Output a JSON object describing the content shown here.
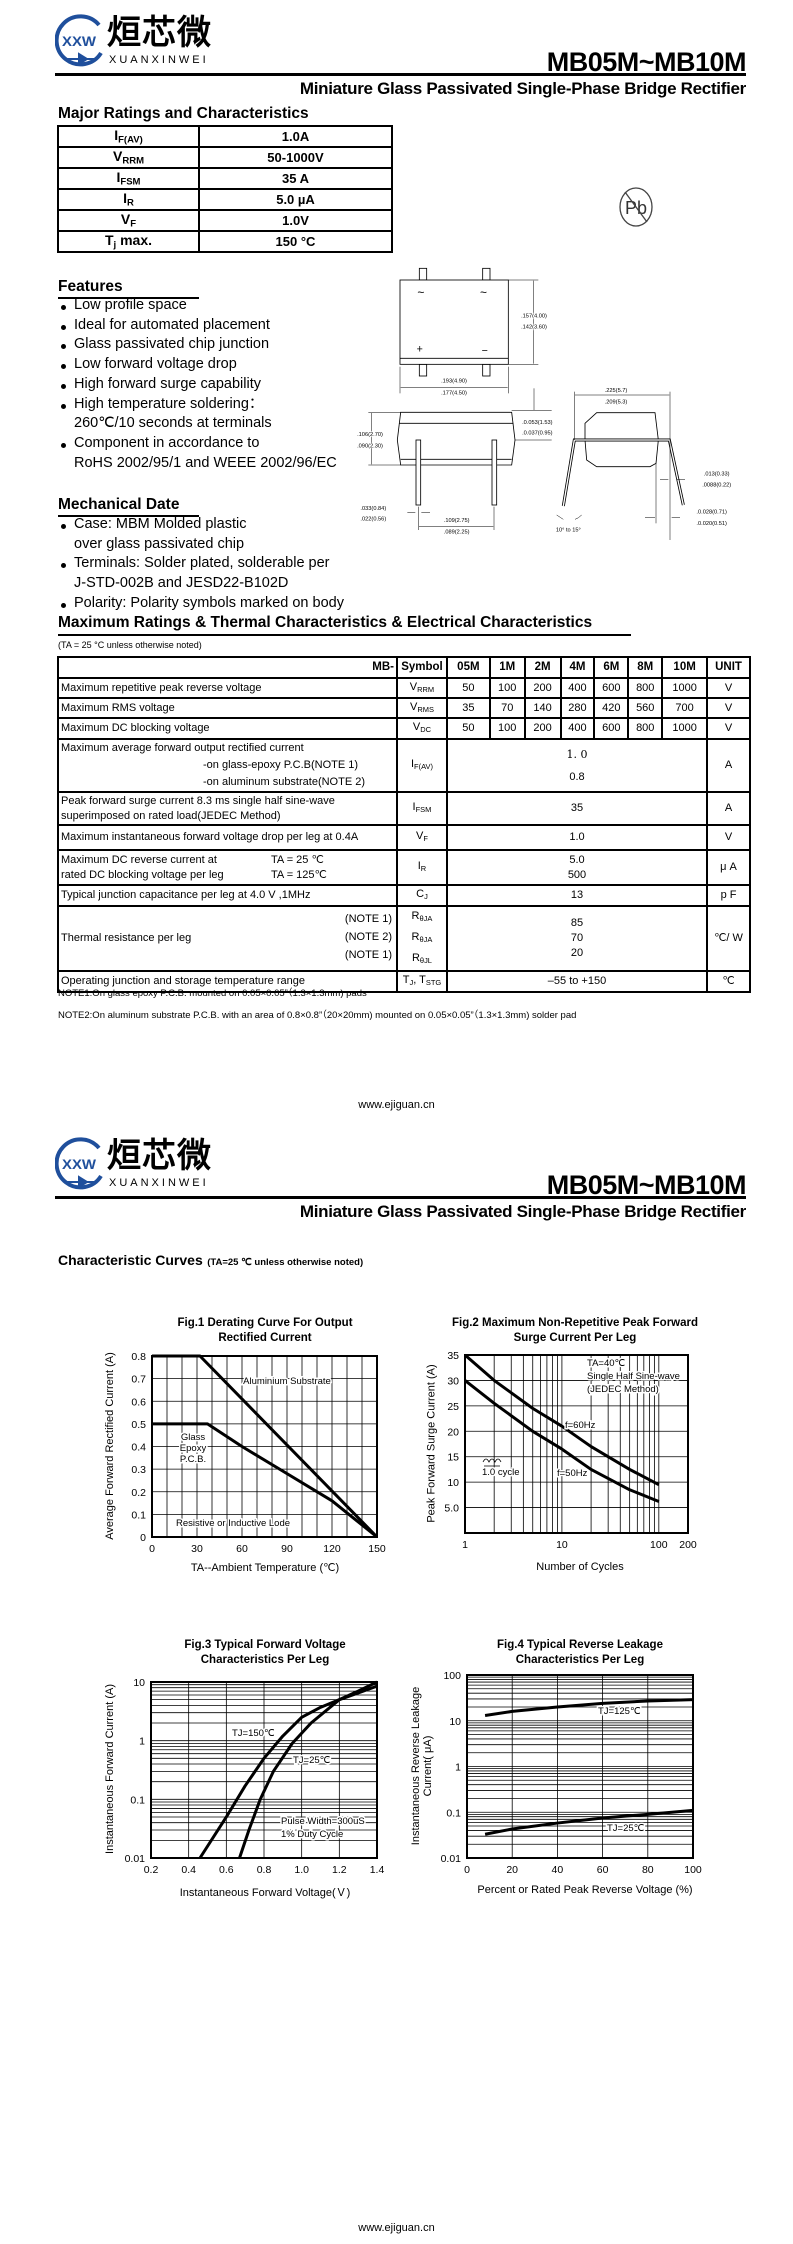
{
  "header": {
    "brand_cn": "烜芯微",
    "brand_latin": "XUANXINWEI",
    "brand_mark": "XXW",
    "part_number": "MB05M~MB10M",
    "subtitle": "Miniature Glass Passivated Single-Phase Bridge Rectifier",
    "brand_color": "#1f4f9c"
  },
  "major_ratings": {
    "heading": "Major Ratings and Characteristics",
    "rows": [
      {
        "symbol": "I",
        "sub": "F(AV)",
        "value": "1.0A"
      },
      {
        "symbol": "V",
        "sub": "RRM",
        "value": "50-1000V"
      },
      {
        "symbol": "I",
        "sub": "FSM",
        "value": "35 A"
      },
      {
        "symbol": "I",
        "sub": "R",
        "value": "5.0 µA"
      },
      {
        "symbol": "V",
        "sub": "F",
        "value": "1.0V"
      },
      {
        "symbol": "T",
        "sub": "j",
        "suffix": " max.",
        "value": "150 °C"
      }
    ]
  },
  "pb_free_icon": "pb-free-icon",
  "features": {
    "heading": "Features",
    "items": [
      "Low profile space",
      "Ideal for automated placement",
      "Glass passivated chip junction",
      "Low forward voltage drop",
      "High forward surge capability",
      "High temperature soldering：\n260℃/10 seconds at terminals",
      "Component in accordance to\nRoHS 2002/95/1 and WEEE 2002/96/EC"
    ]
  },
  "mechanical": {
    "heading": "Mechanical Date",
    "items": [
      "Case: MBM Molded plastic\n over glass passivated chip",
      "Terminals: Solder plated, solderable per\n J-STD-002B and JESD22-B102D",
      "Polarity: Polarity symbols marked on body"
    ]
  },
  "package_drawing": {
    "ac_symbol": "~",
    "plus_symbol": "+",
    "minus_symbol": "−",
    "dims": {
      "height_top": [
        ".157(4.00)",
        ".142(3.60)"
      ],
      "width_top": [
        ".193(4.90)",
        ".177(4.50)"
      ],
      "body_height": [
        ".106(2.70)",
        ".090(2.30)"
      ],
      "standoff": [
        ".0.053(1.53)",
        ".0.037(0.95)"
      ],
      "lead_width": [
        ".033(0.84)",
        ".022(0.56)"
      ],
      "lead_pitch": [
        ".109(2.75)",
        ".089(2.25)"
      ],
      "overall_width": [
        ".225(5.7)",
        ".209(5.3)"
      ],
      "lead_thickness": [
        ".013(0.33)",
        ".0088(0.22)"
      ],
      "lead_tip": [
        ".0.028(0.71)",
        ".0.020(0.51)"
      ],
      "angle": "10° to 15°"
    }
  },
  "ratings": {
    "heading": "Maximum Ratings & Thermal Characteristics & Electrical Characteristics",
    "condition": "(TA = 25 °C unless otherwise noted)",
    "columns": [
      "MB-",
      "Symbol",
      "05M",
      "1M",
      "2M",
      "4M",
      "6M",
      "8M",
      "10M",
      "UNIT"
    ],
    "rows": {
      "vrrm": {
        "desc": "Maximum repetitive peak reverse voltage",
        "sym": "V",
        "sub": "RRM",
        "values": [
          "50",
          "100",
          "200",
          "400",
          "600",
          "800",
          "1000"
        ],
        "unit": "V"
      },
      "vrms": {
        "desc": "Maximum RMS voltage",
        "sym": "V",
        "sub": "RMS",
        "values": [
          "35",
          "70",
          "140",
          "280",
          "420",
          "560",
          "700"
        ],
        "unit": "V"
      },
      "vdc": {
        "desc": "Maximum DC blocking voltage",
        "sym": "V",
        "sub": "DC",
        "values": [
          "50",
          "100",
          "200",
          "400",
          "600",
          "800",
          "1000"
        ],
        "unit": "V"
      },
      "ifav": {
        "desc": "Maximum average forward output rectified current",
        "cond1": "-on glass-epoxy P.C.B(NOTE 1)",
        "cond2": "-on aluminum substrate(NOTE 2)",
        "sym": "I",
        "sub": "F(AV)",
        "value1": "1. 0",
        "value2": "0.8",
        "unit": "A"
      },
      "ifsm": {
        "desc": "Peak forward surge current 8.3 ms single half sine-wave superimposed on rated load(JEDEC Method)",
        "sym": "I",
        "sub": "FSM",
        "value": "35",
        "unit": "A"
      },
      "vf": {
        "desc": "Maximum instantaneous forward voltage drop per leg at 0.4A",
        "sym": "V",
        "sub": "F",
        "value": "1.0",
        "unit": "V"
      },
      "ir": {
        "desc1": "Maximum DC reverse current at",
        "desc2": "rated DC blocking voltage per leg",
        "cond1": "TA = 25 ℃",
        "cond2": "TA = 125℃",
        "sym": "I",
        "sub": "R",
        "value1": "5.0",
        "value2": "500",
        "unit": "μ A"
      },
      "cj": {
        "desc": "Typical junction capacitance per leg at 4.0 V ,1MHz",
        "sym": "C",
        "sub": "J",
        "value": "13",
        "unit": "p F"
      },
      "rth": {
        "desc": "Thermal resistance per leg",
        "notes": [
          "(NOTE 1)",
          "(NOTE 2)",
          "(NOTE 1)"
        ],
        "syms": [
          {
            "sym": "R",
            "sub": "θJA"
          },
          {
            "sym": "R",
            "sub": "θJA"
          },
          {
            "sym": "R",
            "sub": "θJL"
          }
        ],
        "values": [
          "85",
          "70",
          "20"
        ],
        "unit": "℃/ W"
      },
      "tj": {
        "desc": "Operating junction and storage temperature range",
        "sym": "T",
        "sub": "J",
        "sym2": ", T",
        "sub2": "STG",
        "value": "–55 to +150",
        "unit": "℃"
      }
    },
    "notes": [
      "NOTE1:On glass epoxy P.C.B. mounted on 0.05×0.05”（1.3×1.3mm) pads",
      "NOTE2:On aluminum substrate P.C.B. with an area of 0.8×0.8”（20×20mm) mounted on 0.05×0.05”（1.3×1.3mm) solder pad"
    ]
  },
  "footer": {
    "url": "www.ejiguan.cn"
  },
  "curves": {
    "heading": "Characteristic Curves",
    "condition": "(TA=25 ℃ unless otherwise noted)"
  },
  "chart_data": [
    {
      "type": "line",
      "title": "Fig.1 Derating Curve For Output\nRectified Current",
      "xlabel": "TA--Ambient Temperature (℃)",
      "ylabel": "Average Forward Rectified Current (A)",
      "xlim": [
        0,
        150
      ],
      "ylim": [
        0,
        0.8
      ],
      "grid": true,
      "xticks": [
        0,
        30,
        60,
        90,
        120,
        150
      ],
      "xtick_labels": [
        "0",
        "30",
        "60",
        "90",
        "120",
        "150"
      ],
      "yticks": [
        0,
        0.1,
        0.2,
        0.3,
        0.4,
        0.5,
        0.6,
        0.7,
        0.8
      ],
      "ytick_labels": [
        "0",
        "0.1",
        "0.2",
        "0.3",
        "0.4",
        "0.5",
        "0.6",
        "0.7",
        "0.8"
      ],
      "series": [
        {
          "name": "Aluminium Substrate",
          "x": [
            0,
            32,
            150
          ],
          "y": [
            0.8,
            0.8,
            0
          ]
        },
        {
          "name": "Glass Epoxy P.C.B.",
          "x": [
            0,
            37,
            60,
            90,
            120,
            150
          ],
          "y": [
            0.5,
            0.5,
            0.4,
            0.28,
            0.16,
            0
          ]
        }
      ],
      "annotations": [
        "Aluminium Substrate",
        "Glass",
        "Epoxy",
        "P.C.B.",
        "Resistive or Inductive Lode"
      ]
    },
    {
      "type": "line",
      "title": "Fig.2 Maximum Non-Repetitive Peak Forward\nSurge Current Per Leg",
      "xlabel": "Number of Cycles",
      "ylabel": "Peak Forward Surge Current (A)",
      "xscale": "log",
      "xlim": [
        1,
        200
      ],
      "ylim": [
        0,
        35
      ],
      "grid": true,
      "xticks": [
        1,
        10,
        100,
        200
      ],
      "xtick_labels": [
        "1",
        "10",
        "100",
        "200"
      ],
      "yticks": [
        5,
        10,
        15,
        20,
        25,
        30,
        35
      ],
      "ytick_labels": [
        "5.0",
        "10",
        "15",
        "20",
        "25",
        "30",
        "35"
      ],
      "series": [
        {
          "name": "f=60Hz",
          "x": [
            1,
            2,
            5,
            10,
            20,
            50,
            100
          ],
          "y": [
            35,
            30,
            24.5,
            21,
            17,
            12.5,
            9.5
          ]
        },
        {
          "name": "f=50Hz",
          "x": [
            1,
            2,
            5,
            10,
            20,
            50,
            100
          ],
          "y": [
            30,
            25.5,
            20,
            16.5,
            12.5,
            8.5,
            6.2
          ]
        }
      ],
      "annotations": [
        "TA=40℃",
        "Single Half Sine-wave",
        "(JEDEC Method)",
        "f=60Hz",
        "f=50Hz",
        "1.0 cycle"
      ]
    },
    {
      "type": "line",
      "title": "Fig.3 Typical Forward Voltage\nCharacteristics Per Leg",
      "xlabel": "Instantaneous Forward Voltage(Ｖ)",
      "ylabel": "Instantaneous Forward Current (A)",
      "yscale": "log",
      "xlim": [
        0.2,
        1.4
      ],
      "ylim": [
        0.01,
        10
      ],
      "grid": true,
      "xticks": [
        0.2,
        0.4,
        0.6,
        0.8,
        1.0,
        1.2,
        1.4
      ],
      "xtick_labels": [
        "0.2",
        "0.4",
        "0.6",
        "0.8",
        "1.0",
        "1.2",
        "1.4"
      ],
      "yticks": [
        0.01,
        0.1,
        1,
        10
      ],
      "ytick_labels": [
        "0.01",
        "0.1",
        "1",
        "10"
      ],
      "series": [
        {
          "name": "TJ=150℃",
          "x": [
            0.46,
            0.6,
            0.7,
            0.8,
            0.9,
            1.0,
            1.1,
            1.2,
            1.3,
            1.4
          ],
          "y": [
            0.01,
            0.05,
            0.17,
            0.5,
            1.2,
            2.5,
            3.7,
            5.0,
            6.5,
            8.5
          ]
        },
        {
          "name": "TJ=25℃",
          "x": [
            0.67,
            0.72,
            0.78,
            0.85,
            0.95,
            1.05,
            1.2,
            1.3,
            1.4
          ],
          "y": [
            0.01,
            0.03,
            0.1,
            0.3,
            0.9,
            2.0,
            5.0,
            7.0,
            10
          ]
        }
      ],
      "annotations": [
        "TJ=150℃",
        "TJ=25℃",
        "Pulse Width=300uS",
        "1% Duty Cycle"
      ]
    },
    {
      "type": "line",
      "title": "Fig.4 Typical Reverse Leakage\nCharacteristics Per Leg",
      "xlabel": "Percent or Rated Peak Reverse Voltage (%)",
      "ylabel": "Instantaneous Reverse Leakage\nCurrent( μA)",
      "yscale": "log",
      "xlim": [
        0,
        100
      ],
      "ylim": [
        0.01,
        100
      ],
      "grid": true,
      "xticks": [
        0,
        20,
        40,
        60,
        80,
        100
      ],
      "xtick_labels": [
        "0",
        "20",
        "40",
        "60",
        "80",
        "100"
      ],
      "yticks": [
        0.01,
        0.1,
        1,
        10,
        100
      ],
      "ytick_labels": [
        "0.01",
        "0.1",
        "1",
        "10",
        "100"
      ],
      "series": [
        {
          "name": "TJ=125℃",
          "x": [
            8,
            20,
            40,
            60,
            80,
            100
          ],
          "y": [
            13,
            16,
            20,
            24,
            27,
            29
          ]
        },
        {
          "name": "TJ=25℃",
          "x": [
            8,
            20,
            40,
            60,
            80,
            100
          ],
          "y": [
            0.033,
            0.043,
            0.058,
            0.075,
            0.09,
            0.11
          ]
        }
      ],
      "annotations": [
        "TJ=125℃",
        "TJ=25℃"
      ]
    }
  ]
}
